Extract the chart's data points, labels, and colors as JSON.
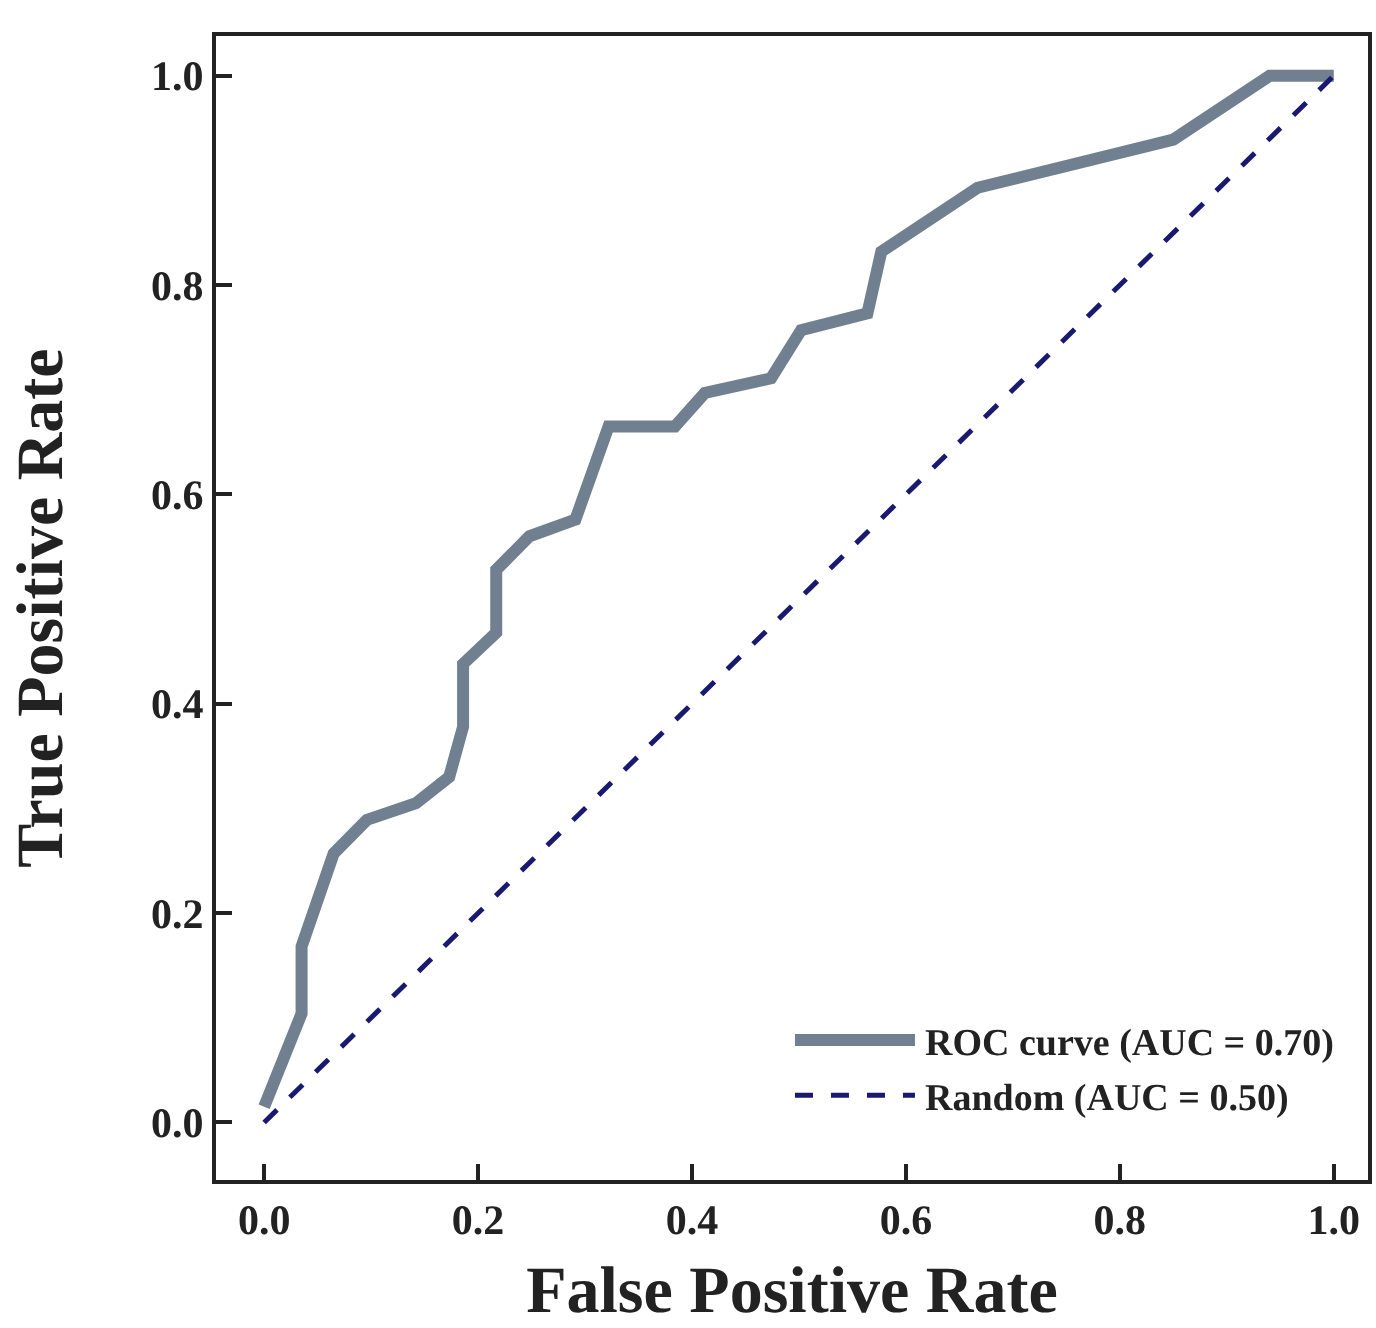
{
  "chart_data": {
    "type": "line",
    "xlabel": "False Positive Rate",
    "ylabel": "True Positive Rate",
    "xlim": [
      -0.045,
      1.032
    ],
    "ylim": [
      -0.055,
      1.038
    ],
    "xticks": [
      {
        "value": 0,
        "label": "0.0"
      },
      {
        "value": 0.2,
        "label": "0.2"
      },
      {
        "value": 0.4,
        "label": "0.4"
      },
      {
        "value": 0.6,
        "label": "0.6"
      },
      {
        "value": 0.8,
        "label": "0.8"
      },
      {
        "value": 1,
        "label": "1.0"
      }
    ],
    "yticks": [
      {
        "value": 0,
        "label": "0.0"
      },
      {
        "value": 0.2,
        "label": "0.2"
      },
      {
        "value": 0.4,
        "label": "0.4"
      },
      {
        "value": 0.6,
        "label": "0.6"
      },
      {
        "value": 0.8,
        "label": "0.8"
      },
      {
        "value": 1,
        "label": "1.0"
      }
    ],
    "grid": false,
    "legend": "bottom right",
    "marker": "none",
    "series": [
      {
        "name": "ROC curve (AUC = 0.70)",
        "color": "#708090",
        "line_style": "solid",
        "x": [
          0,
          0.035,
          0.035,
          0.065,
          0.096,
          0.142,
          0.173,
          0.186,
          0.186,
          0.217,
          0.217,
          0.248,
          0.291,
          0.322,
          0.384,
          0.412,
          0.474,
          0.502,
          0.564,
          0.577,
          0.667,
          0.85,
          0.94,
          1.0
        ],
        "values": [
          0.015,
          0.104,
          0.168,
          0.257,
          0.289,
          0.305,
          0.33,
          0.378,
          0.438,
          0.468,
          0.528,
          0.56,
          0.576,
          0.665,
          0.665,
          0.697,
          0.711,
          0.757,
          0.773,
          0.832,
          0.893,
          0.939,
          1.0,
          1.0
        ]
      },
      {
        "name": "Random (AUC = 0.50)",
        "color": "#191970",
        "line_style": "dashed",
        "x": [
          0,
          1
        ],
        "values": [
          0,
          1
        ]
      }
    ]
  }
}
